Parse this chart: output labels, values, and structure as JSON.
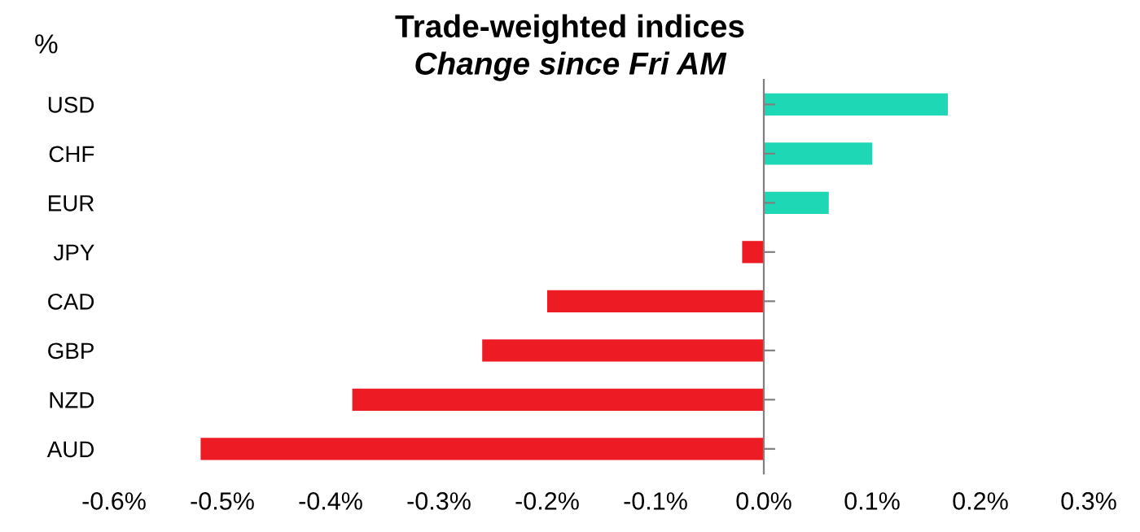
{
  "chart_data": {
    "type": "bar",
    "orientation": "horizontal",
    "title": "Trade-weighted indices",
    "subtitle": "Change since Fri AM",
    "ylabel": "%",
    "categories": [
      "USD",
      "CHF",
      "EUR",
      "JPY",
      "CAD",
      "GBP",
      "NZD",
      "AUD"
    ],
    "values": [
      0.17,
      0.1,
      0.06,
      -0.02,
      -0.2,
      -0.26,
      -0.38,
      -0.52
    ],
    "colors": [
      "#1ed8b5",
      "#1ed8b5",
      "#1ed8b5",
      "#ed1c24",
      "#ed1c24",
      "#ed1c24",
      "#ed1c24",
      "#ed1c24"
    ],
    "xlim": [
      -0.6,
      0.3
    ],
    "xticks": [
      {
        "value": -0.6,
        "label": "-0.6%"
      },
      {
        "value": -0.5,
        "label": "-0.5%"
      },
      {
        "value": -0.4,
        "label": "-0.4%"
      },
      {
        "value": -0.3,
        "label": "-0.3%"
      },
      {
        "value": -0.2,
        "label": "-0.2%"
      },
      {
        "value": -0.1,
        "label": "-0.1%"
      },
      {
        "value": 0,
        "label": "0.0%"
      },
      {
        "value": 0.1,
        "label": "0.1%"
      },
      {
        "value": 0.2,
        "label": "0.2%"
      },
      {
        "value": 0.3,
        "label": "0.3%"
      }
    ],
    "legend": false
  }
}
